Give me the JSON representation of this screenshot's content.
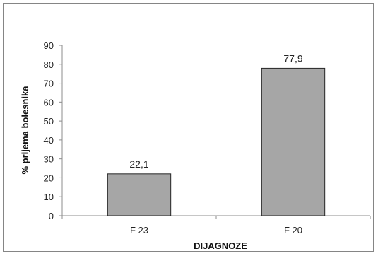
{
  "chart_data": {
    "type": "bar",
    "categories": [
      "F 23",
      "F 20"
    ],
    "values": [
      22.1,
      77.9
    ],
    "value_labels": [
      "22,1",
      "77,9"
    ],
    "title": "",
    "xlabel": "DIJAGNOZE",
    "ylabel": "% prijema bolesnika",
    "ylim": [
      0,
      90
    ],
    "yticks": [
      "0",
      "10",
      "20",
      "30",
      "40",
      "50",
      "60",
      "70",
      "80",
      "90"
    ],
    "grid": false,
    "legend": "none",
    "bar_color": "#a6a6a6",
    "bar_edge_color": "#262626"
  }
}
